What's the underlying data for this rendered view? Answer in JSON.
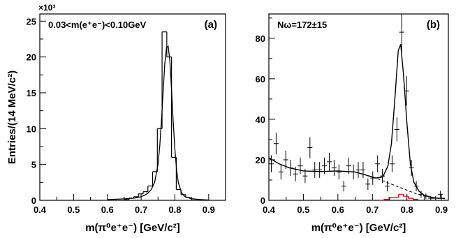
{
  "figure": {
    "ylabel": "Entries/(14 MeV/c²)",
    "colors": {
      "axis": "#000000",
      "histogram": "#000000",
      "fit": "#000000",
      "background_fit": "#000000",
      "peaking_background": "#e00000"
    }
  },
  "chart_data": [
    {
      "type": "histogram",
      "panel_label": "(a)",
      "annotation": "0.03<m(e⁺e⁻)<0.10GeV",
      "xlabel": "m(π⁰e⁺e⁻)  [GeV/c²]",
      "y_exponent_label": "×10³",
      "xlim": [
        0.4,
        0.95
      ],
      "ylim": [
        0,
        26
      ],
      "x_ticks": [
        0.4,
        0.5,
        0.6,
        0.7,
        0.8,
        0.9
      ],
      "y_ticks": [
        0,
        5,
        10,
        15,
        20,
        25
      ],
      "histogram": {
        "bin_edges": [
          0.65,
          0.664,
          0.678,
          0.692,
          0.706,
          0.72,
          0.734,
          0.748,
          0.762,
          0.776,
          0.79,
          0.804,
          0.818,
          0.832,
          0.846,
          0.86
        ],
        "values": [
          0.1,
          0.3,
          0.5,
          0.9,
          1.2,
          2.0,
          4.0,
          10.0,
          23.5,
          20.0,
          6.0,
          1.5,
          0.8,
          0.4,
          0.2
        ]
      },
      "fit": {
        "x": [
          0.6,
          0.65,
          0.68,
          0.7,
          0.71,
          0.72,
          0.73,
          0.74,
          0.75,
          0.755,
          0.76,
          0.765,
          0.77,
          0.775,
          0.78,
          0.785,
          0.79,
          0.795,
          0.8,
          0.805,
          0.81,
          0.82,
          0.83,
          0.85,
          0.88,
          0.9
        ],
        "y": [
          0.1,
          0.2,
          0.3,
          0.5,
          0.7,
          1.0,
          1.5,
          2.5,
          5.0,
          7.5,
          11.0,
          15.0,
          19.0,
          21.3,
          21.5,
          19.5,
          15.5,
          11.0,
          7.0,
          4.2,
          2.5,
          1.0,
          0.5,
          0.2,
          0.1,
          0.05
        ]
      }
    },
    {
      "type": "scatter",
      "panel_label": "(b)",
      "annotation": "Nω=172±15",
      "xlabel": "m(π⁰e⁺e⁻)  [GeV/c²]",
      "xlim": [
        0.4,
        0.92
      ],
      "ylim": [
        0,
        92
      ],
      "x_ticks": [
        0.4,
        0.5,
        0.6,
        0.7,
        0.8,
        0.9
      ],
      "y_ticks": [
        0,
        20,
        40,
        60,
        80
      ],
      "bin_half_width": 0.007,
      "points": {
        "x": [
          0.407,
          0.421,
          0.435,
          0.449,
          0.463,
          0.477,
          0.491,
          0.505,
          0.519,
          0.533,
          0.547,
          0.561,
          0.575,
          0.589,
          0.603,
          0.617,
          0.631,
          0.645,
          0.659,
          0.673,
          0.687,
          0.701,
          0.715,
          0.729,
          0.743,
          0.757,
          0.771,
          0.785,
          0.799,
          0.813,
          0.827,
          0.841,
          0.855,
          0.869,
          0.883,
          0.897
        ],
        "y": [
          18,
          28,
          14,
          20,
          16,
          13,
          17,
          12,
          26,
          15,
          15,
          17,
          19,
          16,
          14,
          7,
          17,
          14,
          15,
          15,
          8,
          11,
          18,
          12,
          7,
          18,
          35,
          83,
          54,
          16,
          7,
          3,
          2,
          1,
          1,
          3
        ],
        "err": [
          4.2,
          5.3,
          3.7,
          4.5,
          4.0,
          3.6,
          4.1,
          3.5,
          5.1,
          3.9,
          3.9,
          4.1,
          4.4,
          4.0,
          3.7,
          2.6,
          4.1,
          3.7,
          3.9,
          3.9,
          2.8,
          3.3,
          4.2,
          3.5,
          2.6,
          4.2,
          5.9,
          9.1,
          7.3,
          4.0,
          2.6,
          1.7,
          1.4,
          1.0,
          1.0,
          1.7
        ]
      },
      "total_fit": {
        "x": [
          0.4,
          0.43,
          0.46,
          0.5,
          0.55,
          0.6,
          0.65,
          0.68,
          0.71,
          0.73,
          0.745,
          0.755,
          0.765,
          0.775,
          0.782,
          0.79,
          0.8,
          0.81,
          0.82,
          0.835,
          0.85,
          0.87,
          0.89,
          0.91
        ],
        "y": [
          21,
          18,
          16,
          14.5,
          14.2,
          14.5,
          14.0,
          12.5,
          11.0,
          11.5,
          17,
          28,
          50,
          74,
          77,
          62,
          38,
          18,
          9,
          4.5,
          2.5,
          1.5,
          1.0,
          1.0
        ]
      },
      "background_fit": {
        "x": [
          0.4,
          0.43,
          0.46,
          0.5,
          0.55,
          0.6,
          0.65,
          0.68,
          0.71,
          0.74,
          0.77,
          0.8,
          0.83,
          0.86,
          0.89,
          0.91
        ],
        "y": [
          21,
          18,
          16,
          14.5,
          14.2,
          14.5,
          14.0,
          12.5,
          11.0,
          9.0,
          7.0,
          5.0,
          3.0,
          1.8,
          1.0,
          0.8
        ]
      },
      "peaking_background": {
        "bin_edges": [
          0.72,
          0.734,
          0.748,
          0.762,
          0.776,
          0.79,
          0.804,
          0.818,
          0.832
        ],
        "values": [
          0,
          0.5,
          1.5,
          1.5,
          3.0,
          2.0,
          1.0,
          0.5
        ]
      }
    }
  ]
}
